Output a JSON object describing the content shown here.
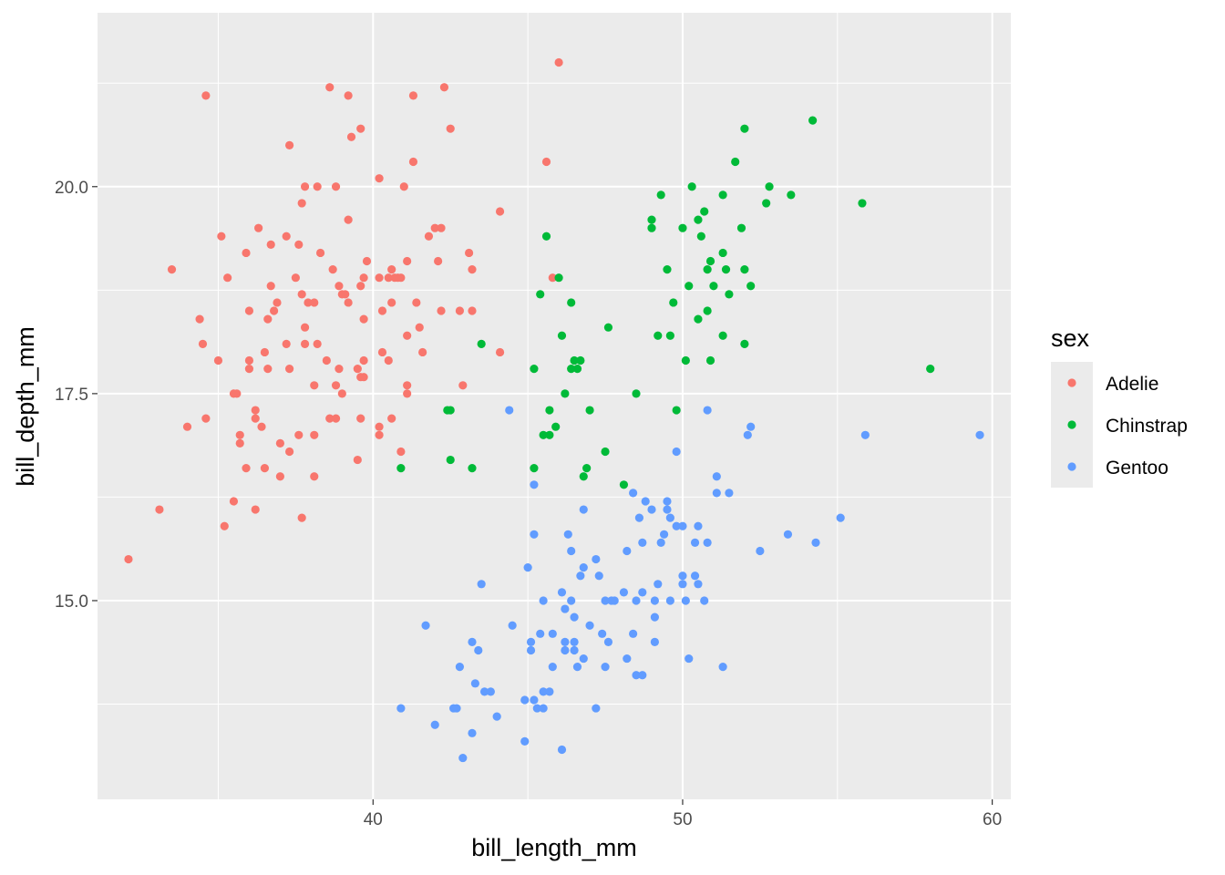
{
  "chart_data": {
    "type": "scatter",
    "xlabel": "bill_length_mm",
    "ylabel": "bill_depth_mm",
    "xlim": [
      31.1,
      60.6
    ],
    "ylim": [
      12.6,
      22.1
    ],
    "x_ticks": [
      40,
      50,
      60
    ],
    "x_tick_labels": [
      "40",
      "50",
      "60"
    ],
    "y_ticks": [
      15.0,
      17.5,
      20.0
    ],
    "y_tick_labels": [
      "15.0",
      "17.5",
      "20.0"
    ],
    "grid": true,
    "legend": {
      "title": "sex",
      "position": "right",
      "entries": [
        "Adelie",
        "Chinstrap",
        "Gentoo"
      ]
    },
    "colors": {
      "Adelie": "#F8766D",
      "Chinstrap": "#00BA38",
      "Gentoo": "#619CFF",
      "panel": "#EBEBEB",
      "grid": "#FFFFFF"
    },
    "series": [
      {
        "name": "Adelie",
        "points": [
          [
            32.1,
            15.5
          ],
          [
            33.1,
            16.1
          ],
          [
            33.5,
            19.0
          ],
          [
            34.0,
            17.1
          ],
          [
            34.4,
            18.4
          ],
          [
            34.5,
            18.1
          ],
          [
            34.6,
            21.1
          ],
          [
            34.6,
            17.2
          ],
          [
            35.0,
            17.9
          ],
          [
            35.1,
            19.4
          ],
          [
            35.2,
            15.9
          ],
          [
            35.3,
            18.9
          ],
          [
            35.5,
            16.2
          ],
          [
            35.5,
            17.5
          ],
          [
            35.6,
            17.5
          ],
          [
            35.7,
            17.0
          ],
          [
            35.7,
            16.9
          ],
          [
            35.9,
            19.2
          ],
          [
            35.9,
            16.6
          ],
          [
            36.0,
            18.5
          ],
          [
            36.0,
            17.9
          ],
          [
            36.0,
            17.8
          ],
          [
            36.2,
            17.3
          ],
          [
            36.2,
            17.2
          ],
          [
            36.2,
            16.1
          ],
          [
            36.3,
            19.5
          ],
          [
            36.4,
            17.1
          ],
          [
            36.5,
            18.0
          ],
          [
            36.5,
            16.6
          ],
          [
            36.6,
            18.4
          ],
          [
            36.6,
            17.8
          ],
          [
            36.7,
            19.3
          ],
          [
            36.7,
            18.8
          ],
          [
            36.8,
            18.5
          ],
          [
            36.9,
            18.6
          ],
          [
            37.0,
            16.9
          ],
          [
            37.0,
            16.5
          ],
          [
            37.2,
            19.4
          ],
          [
            37.2,
            18.1
          ],
          [
            37.3,
            20.5
          ],
          [
            37.3,
            17.8
          ],
          [
            37.3,
            16.8
          ],
          [
            37.5,
            18.9
          ],
          [
            37.6,
            19.3
          ],
          [
            37.6,
            17.0
          ],
          [
            37.7,
            19.8
          ],
          [
            37.7,
            18.7
          ],
          [
            37.7,
            16.0
          ],
          [
            37.8,
            20.0
          ],
          [
            37.8,
            18.3
          ],
          [
            37.8,
            18.1
          ],
          [
            37.9,
            18.6
          ],
          [
            38.1,
            18.6
          ],
          [
            38.1,
            17.6
          ],
          [
            38.1,
            17.0
          ],
          [
            38.1,
            16.5
          ],
          [
            38.2,
            20.0
          ],
          [
            38.2,
            18.1
          ],
          [
            38.3,
            19.2
          ],
          [
            38.5,
            17.9
          ],
          [
            38.6,
            21.2
          ],
          [
            38.6,
            17.2
          ],
          [
            38.7,
            19.0
          ],
          [
            38.8,
            20.0
          ],
          [
            38.8,
            17.6
          ],
          [
            38.8,
            17.2
          ],
          [
            38.9,
            18.8
          ],
          [
            38.9,
            17.8
          ],
          [
            39.0,
            18.7
          ],
          [
            39.0,
            17.5
          ],
          [
            39.1,
            18.7
          ],
          [
            39.2,
            21.1
          ],
          [
            39.2,
            19.6
          ],
          [
            39.2,
            18.6
          ],
          [
            39.3,
            20.6
          ],
          [
            39.5,
            17.8
          ],
          [
            39.5,
            16.7
          ],
          [
            39.6,
            20.7
          ],
          [
            39.6,
            18.8
          ],
          [
            39.6,
            17.7
          ],
          [
            39.6,
            17.2
          ],
          [
            39.7,
            18.9
          ],
          [
            39.7,
            18.4
          ],
          [
            39.7,
            17.9
          ],
          [
            39.7,
            17.7
          ],
          [
            39.8,
            19.1
          ],
          [
            40.2,
            20.1
          ],
          [
            40.2,
            18.9
          ],
          [
            40.2,
            17.1
          ],
          [
            40.2,
            17.0
          ],
          [
            40.3,
            18.5
          ],
          [
            40.3,
            18.0
          ],
          [
            40.5,
            18.9
          ],
          [
            40.5,
            17.9
          ],
          [
            40.6,
            19.0
          ],
          [
            40.6,
            18.6
          ],
          [
            40.6,
            17.2
          ],
          [
            40.7,
            18.9
          ],
          [
            40.8,
            18.9
          ],
          [
            40.9,
            18.9
          ],
          [
            40.9,
            16.8
          ],
          [
            41.0,
            20.0
          ],
          [
            41.1,
            19.1
          ],
          [
            41.1,
            18.2
          ],
          [
            41.1,
            17.5
          ],
          [
            41.1,
            17.6
          ],
          [
            41.3,
            21.1
          ],
          [
            41.3,
            20.3
          ],
          [
            41.4,
            18.6
          ],
          [
            41.5,
            18.3
          ],
          [
            41.6,
            18.0
          ],
          [
            41.8,
            19.4
          ],
          [
            42.0,
            19.5
          ],
          [
            42.1,
            19.1
          ],
          [
            42.2,
            19.5
          ],
          [
            42.2,
            18.5
          ],
          [
            42.3,
            21.2
          ],
          [
            42.5,
            20.7
          ],
          [
            42.8,
            18.5
          ],
          [
            42.9,
            17.6
          ],
          [
            43.1,
            19.2
          ],
          [
            43.2,
            19.0
          ],
          [
            43.2,
            18.5
          ],
          [
            44.1,
            19.7
          ],
          [
            44.1,
            18.0
          ],
          [
            45.6,
            20.3
          ],
          [
            45.8,
            18.9
          ],
          [
            46.0,
            21.5
          ]
        ]
      },
      {
        "name": "Chinstrap",
        "points": [
          [
            40.9,
            16.6
          ],
          [
            42.4,
            17.3
          ],
          [
            42.5,
            17.3
          ],
          [
            42.5,
            16.7
          ],
          [
            43.2,
            16.6
          ],
          [
            43.5,
            18.1
          ],
          [
            45.2,
            17.8
          ],
          [
            45.2,
            16.6
          ],
          [
            45.4,
            18.7
          ],
          [
            45.5,
            17.0
          ],
          [
            45.6,
            19.4
          ],
          [
            45.7,
            17.3
          ],
          [
            45.7,
            17.0
          ],
          [
            45.9,
            17.1
          ],
          [
            46.0,
            18.9
          ],
          [
            46.1,
            18.2
          ],
          [
            46.2,
            17.5
          ],
          [
            46.4,
            18.6
          ],
          [
            46.4,
            17.8
          ],
          [
            46.5,
            17.9
          ],
          [
            46.6,
            17.8
          ],
          [
            46.7,
            17.9
          ],
          [
            46.8,
            16.5
          ],
          [
            46.9,
            16.6
          ],
          [
            47.0,
            17.3
          ],
          [
            47.5,
            16.8
          ],
          [
            47.6,
            18.3
          ],
          [
            48.1,
            16.4
          ],
          [
            48.5,
            17.5
          ],
          [
            49.0,
            19.5
          ],
          [
            49.0,
            19.6
          ],
          [
            49.2,
            18.2
          ],
          [
            49.3,
            19.9
          ],
          [
            49.5,
            19.0
          ],
          [
            49.6,
            18.2
          ],
          [
            49.7,
            18.6
          ],
          [
            49.8,
            17.3
          ],
          [
            50.0,
            19.5
          ],
          [
            50.1,
            17.9
          ],
          [
            50.2,
            18.8
          ],
          [
            50.3,
            20.0
          ],
          [
            50.5,
            19.6
          ],
          [
            50.5,
            18.4
          ],
          [
            50.6,
            19.4
          ],
          [
            50.7,
            19.7
          ],
          [
            50.8,
            19.0
          ],
          [
            50.8,
            18.5
          ],
          [
            50.9,
            19.1
          ],
          [
            50.9,
            17.9
          ],
          [
            51.0,
            18.8
          ],
          [
            51.3,
            19.9
          ],
          [
            51.3,
            19.2
          ],
          [
            51.3,
            18.2
          ],
          [
            51.4,
            19.0
          ],
          [
            51.5,
            18.7
          ],
          [
            51.7,
            20.3
          ],
          [
            51.9,
            19.5
          ],
          [
            52.0,
            20.7
          ],
          [
            52.0,
            19.0
          ],
          [
            52.0,
            18.1
          ],
          [
            52.2,
            18.8
          ],
          [
            52.7,
            19.8
          ],
          [
            52.8,
            20.0
          ],
          [
            53.5,
            19.9
          ],
          [
            54.2,
            20.8
          ],
          [
            55.8,
            19.8
          ],
          [
            58.0,
            17.8
          ]
        ]
      },
      {
        "name": "Gentoo",
        "points": [
          [
            40.9,
            13.7
          ],
          [
            41.7,
            14.7
          ],
          [
            42.0,
            13.5
          ],
          [
            42.6,
            13.7
          ],
          [
            42.7,
            13.7
          ],
          [
            42.8,
            14.2
          ],
          [
            42.9,
            13.1
          ],
          [
            43.2,
            14.5
          ],
          [
            43.2,
            13.4
          ],
          [
            43.3,
            14.0
          ],
          [
            43.4,
            14.4
          ],
          [
            43.5,
            15.2
          ],
          [
            43.6,
            13.9
          ],
          [
            43.8,
            13.9
          ],
          [
            44.0,
            13.6
          ],
          [
            44.4,
            17.3
          ],
          [
            44.5,
            14.7
          ],
          [
            44.9,
            13.8
          ],
          [
            44.9,
            13.3
          ],
          [
            45.0,
            15.4
          ],
          [
            45.1,
            14.5
          ],
          [
            45.1,
            14.4
          ],
          [
            45.2,
            16.4
          ],
          [
            45.2,
            15.8
          ],
          [
            45.2,
            13.8
          ],
          [
            45.3,
            13.7
          ],
          [
            45.4,
            14.6
          ],
          [
            45.5,
            13.9
          ],
          [
            45.5,
            13.7
          ],
          [
            45.5,
            15.0
          ],
          [
            45.7,
            13.9
          ],
          [
            45.8,
            14.6
          ],
          [
            45.8,
            14.2
          ],
          [
            46.1,
            15.1
          ],
          [
            46.1,
            13.2
          ],
          [
            46.2,
            14.9
          ],
          [
            46.2,
            14.5
          ],
          [
            46.2,
            14.4
          ],
          [
            46.3,
            15.8
          ],
          [
            46.4,
            15.6
          ],
          [
            46.4,
            15.0
          ],
          [
            46.5,
            14.8
          ],
          [
            46.5,
            14.4
          ],
          [
            46.5,
            14.5
          ],
          [
            46.6,
            14.2
          ],
          [
            46.7,
            15.3
          ],
          [
            46.8,
            16.1
          ],
          [
            46.8,
            15.4
          ],
          [
            46.8,
            14.3
          ],
          [
            47.0,
            14.7
          ],
          [
            47.2,
            15.5
          ],
          [
            47.2,
            13.7
          ],
          [
            47.3,
            15.3
          ],
          [
            47.4,
            14.6
          ],
          [
            47.5,
            15.0
          ],
          [
            47.5,
            14.2
          ],
          [
            47.6,
            14.5
          ],
          [
            47.7,
            15.0
          ],
          [
            47.8,
            15.0
          ],
          [
            48.1,
            15.1
          ],
          [
            48.2,
            15.6
          ],
          [
            48.2,
            14.3
          ],
          [
            48.4,
            16.3
          ],
          [
            48.4,
            14.6
          ],
          [
            48.5,
            15.0
          ],
          [
            48.5,
            14.1
          ],
          [
            48.6,
            16.0
          ],
          [
            48.7,
            15.7
          ],
          [
            48.7,
            15.1
          ],
          [
            48.7,
            14.1
          ],
          [
            48.8,
            16.2
          ],
          [
            49.0,
            16.1
          ],
          [
            49.1,
            15.0
          ],
          [
            49.1,
            14.8
          ],
          [
            49.1,
            14.5
          ],
          [
            49.2,
            15.2
          ],
          [
            49.3,
            15.7
          ],
          [
            49.4,
            15.8
          ],
          [
            49.5,
            16.2
          ],
          [
            49.5,
            16.1
          ],
          [
            49.6,
            16.0
          ],
          [
            49.6,
            15.0
          ],
          [
            49.8,
            16.8
          ],
          [
            49.8,
            15.9
          ],
          [
            50.0,
            15.9
          ],
          [
            50.0,
            15.3
          ],
          [
            50.0,
            15.2
          ],
          [
            50.1,
            15.0
          ],
          [
            50.2,
            14.3
          ],
          [
            50.4,
            15.7
          ],
          [
            50.4,
            15.3
          ],
          [
            50.5,
            15.9
          ],
          [
            50.5,
            15.2
          ],
          [
            50.7,
            15.0
          ],
          [
            50.8,
            17.3
          ],
          [
            50.8,
            15.7
          ],
          [
            51.1,
            16.5
          ],
          [
            51.1,
            16.3
          ],
          [
            51.3,
            14.2
          ],
          [
            51.5,
            16.3
          ],
          [
            52.1,
            17.0
          ],
          [
            52.2,
            17.1
          ],
          [
            52.5,
            15.6
          ],
          [
            53.4,
            15.8
          ],
          [
            54.3,
            15.7
          ],
          [
            55.1,
            16.0
          ],
          [
            55.9,
            17.0
          ],
          [
            59.6,
            17.0
          ]
        ]
      }
    ]
  }
}
